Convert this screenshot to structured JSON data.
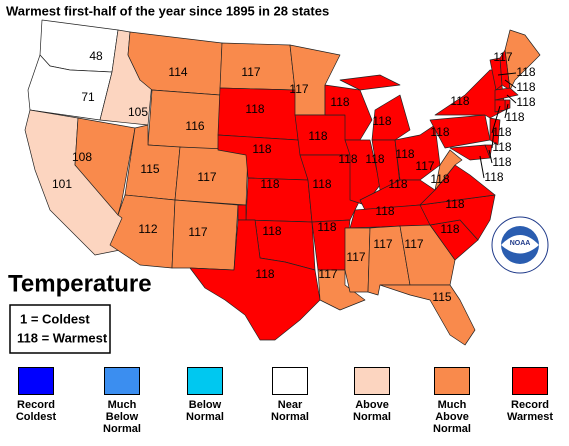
{
  "title": "Warmest first-half of the year since 1895 in 28 states",
  "legend_title": "Temperature",
  "key": [
    "1 = Coldest",
    "118 = Warmest"
  ],
  "logo": "NOAA",
  "categories": [
    {
      "label": "Record Coldest",
      "color": "#0000ff"
    },
    {
      "label": "Much Below Normal",
      "color": "#3b8ef0"
    },
    {
      "label": "Below Normal",
      "color": "#00c8f0"
    },
    {
      "label": "Near Normal",
      "color": "#ffffff"
    },
    {
      "label": "Above Normal",
      "color": "#fcd5c0"
    },
    {
      "label": "Much Above Normal",
      "color": "#f98a4c"
    },
    {
      "label": "Record Warmest",
      "color": "#ff0000"
    }
  ],
  "regions": [
    {
      "value": 48,
      "color": "#ffffff"
    },
    {
      "value": 71,
      "color": "#ffffff"
    },
    {
      "value": 101,
      "color": "#fcd5c0"
    },
    {
      "value": 108,
      "color": "#f98a4c"
    },
    {
      "value": 105,
      "color": "#fcd5c0"
    },
    {
      "value": 114,
      "color": "#f98a4c"
    },
    {
      "value": 116,
      "color": "#f98a4c"
    },
    {
      "value": 115,
      "color": "#f98a4c"
    },
    {
      "value": 117,
      "color": "#f98a4c"
    },
    {
      "value": 112,
      "color": "#f98a4c"
    },
    {
      "value": 117,
      "color": "#f98a4c"
    },
    {
      "value": 117,
      "color": "#f98a4c"
    },
    {
      "value": 118,
      "color": "#ff0000"
    },
    {
      "value": 118,
      "color": "#ff0000"
    },
    {
      "value": 118,
      "color": "#ff0000"
    },
    {
      "value": 118,
      "color": "#ff0000"
    },
    {
      "value": 118,
      "color": "#ff0000"
    },
    {
      "value": 117,
      "color": "#f98a4c"
    },
    {
      "value": 118,
      "color": "#ff0000"
    },
    {
      "value": 118,
      "color": "#ff0000"
    },
    {
      "value": 118,
      "color": "#ff0000"
    },
    {
      "value": 117,
      "color": "#f98a4c"
    },
    {
      "value": 118,
      "color": "#ff0000"
    },
    {
      "value": 118,
      "color": "#ff0000"
    },
    {
      "value": 118,
      "color": "#ff0000"
    },
    {
      "value": 118,
      "color": "#ff0000"
    },
    {
      "value": 118,
      "color": "#ff0000"
    },
    {
      "value": 118,
      "color": "#ff0000"
    },
    {
      "value": 118,
      "color": "#ff0000"
    },
    {
      "value": 117,
      "color": "#f98a4c"
    },
    {
      "value": 117,
      "color": "#f98a4c"
    },
    {
      "value": 117,
      "color": "#f98a4c"
    },
    {
      "value": 115,
      "color": "#f98a4c"
    },
    {
      "value": 118,
      "color": "#ff0000"
    },
    {
      "value": 118,
      "color": "#ff0000"
    },
    {
      "value": 118,
      "color": "#ff0000"
    },
    {
      "value": 117,
      "color": "#f98a4c"
    },
    {
      "value": 118,
      "color": "#ff0000"
    },
    {
      "value": 118,
      "color": "#ff0000"
    },
    {
      "value": 117,
      "color": "#f98a4c"
    },
    {
      "value": 118,
      "color": "#ff0000"
    },
    {
      "value": 118,
      "color": "#ff0000"
    },
    {
      "value": 118,
      "color": "#ff0000"
    },
    {
      "value": 118,
      "color": "#ff0000"
    },
    {
      "value": 118,
      "color": "#ff0000"
    },
    {
      "value": 118,
      "color": "#ff0000"
    },
    {
      "value": 118,
      "color": "#ff0000"
    },
    {
      "value": 118,
      "color": "#ff0000"
    }
  ]
}
